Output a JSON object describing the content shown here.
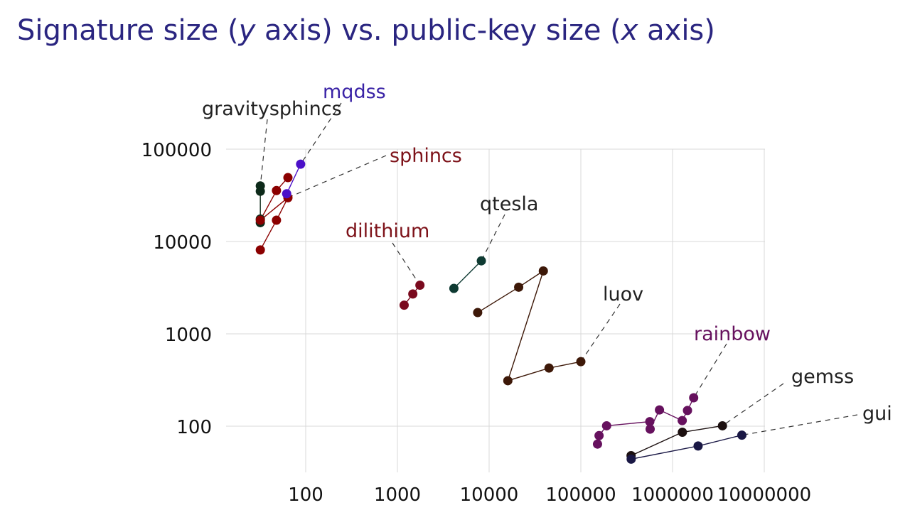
{
  "slide": {
    "title_parts": [
      "Signature size (",
      "y",
      " axis) vs. public-key size (",
      "x",
      " axis)"
    ]
  },
  "chart_data": {
    "type": "scatter",
    "title": "Signature size (y axis) vs. public-key size (x axis)",
    "xscale": "log",
    "yscale": "log",
    "xlim": [
      20,
      10000000
    ],
    "ylim": [
      30,
      100000
    ],
    "grid": true,
    "legend": "labels next to series",
    "x_ticks": [
      100,
      1000,
      10000,
      100000,
      1000000,
      10000000
    ],
    "x_tick_labels": [
      "100",
      "1000",
      "10000",
      "100000",
      "1000000",
      "10000000"
    ],
    "y_ticks": [
      100,
      1000,
      10000,
      100000
    ],
    "y_tick_labels": [
      "100",
      "1000",
      "10000",
      "100000"
    ],
    "series": [
      {
        "name": "gravitysphincs",
        "color": "#0d2a1a",
        "points": [
          [
            32,
            40000
          ],
          [
            32,
            35000
          ],
          [
            32,
            17500
          ],
          [
            32,
            16000
          ]
        ]
      },
      {
        "name": "sphincs",
        "color": "#8b0000",
        "points": [
          [
            32,
            8100
          ],
          [
            48,
            17000
          ],
          [
            64,
            29800
          ],
          [
            32,
            17000
          ],
          [
            48,
            35600
          ],
          [
            64,
            49200
          ]
        ]
      },
      {
        "name": "mqdss",
        "color": "#4b0fc8",
        "points": [
          [
            62,
            32900
          ],
          [
            88,
            68800
          ]
        ]
      },
      {
        "name": "dilithium",
        "color": "#7a0a1e",
        "points": [
          [
            1184,
            2044
          ],
          [
            1472,
            2701
          ],
          [
            1760,
            3366
          ]
        ]
      },
      {
        "name": "qtesla",
        "color": "#0e3a32",
        "points": [
          [
            4128,
            3104
          ],
          [
            8224,
            6176
          ]
        ]
      },
      {
        "name": "luov",
        "color": "#3d1808",
        "points": [
          [
            7500,
            1700
          ],
          [
            21000,
            3200
          ],
          [
            39000,
            4800
          ],
          [
            16000,
            311
          ],
          [
            45000,
            426
          ],
          [
            100000,
            500
          ]
        ]
      },
      {
        "name": "rainbow",
        "color": "#66115e",
        "points": [
          [
            152000,
            64
          ],
          [
            158000,
            79
          ],
          [
            191000,
            101
          ],
          [
            565000,
            112
          ],
          [
            570000,
            93
          ],
          [
            720000,
            150
          ],
          [
            1275000,
            115
          ],
          [
            1455000,
            148
          ],
          [
            1700000,
            203
          ]
        ]
      },
      {
        "name": "gemss",
        "color": "#1c1010",
        "points": [
          [
            353000,
            48
          ],
          [
            1280000,
            86
          ],
          [
            3500000,
            101
          ]
        ]
      },
      {
        "name": "gui",
        "color": "#1a1845",
        "points": [
          [
            354000,
            44
          ],
          [
            1900000,
            61
          ],
          [
            5700000,
            80
          ]
        ]
      }
    ],
    "annotations": [
      {
        "text": "gravitysphincs",
        "color": "#222222"
      },
      {
        "text": "mqdss",
        "color": "#3a23a6"
      },
      {
        "text": "sphincs",
        "color": "#7d1219"
      },
      {
        "text": "qtesla",
        "color": "#222222"
      },
      {
        "text": "dilithium",
        "color": "#7d1219"
      },
      {
        "text": "luov",
        "color": "#222222"
      },
      {
        "text": "rainbow",
        "color": "#66115e"
      },
      {
        "text": "gemss",
        "color": "#222222"
      },
      {
        "text": "gui",
        "color": "#222222"
      }
    ]
  }
}
